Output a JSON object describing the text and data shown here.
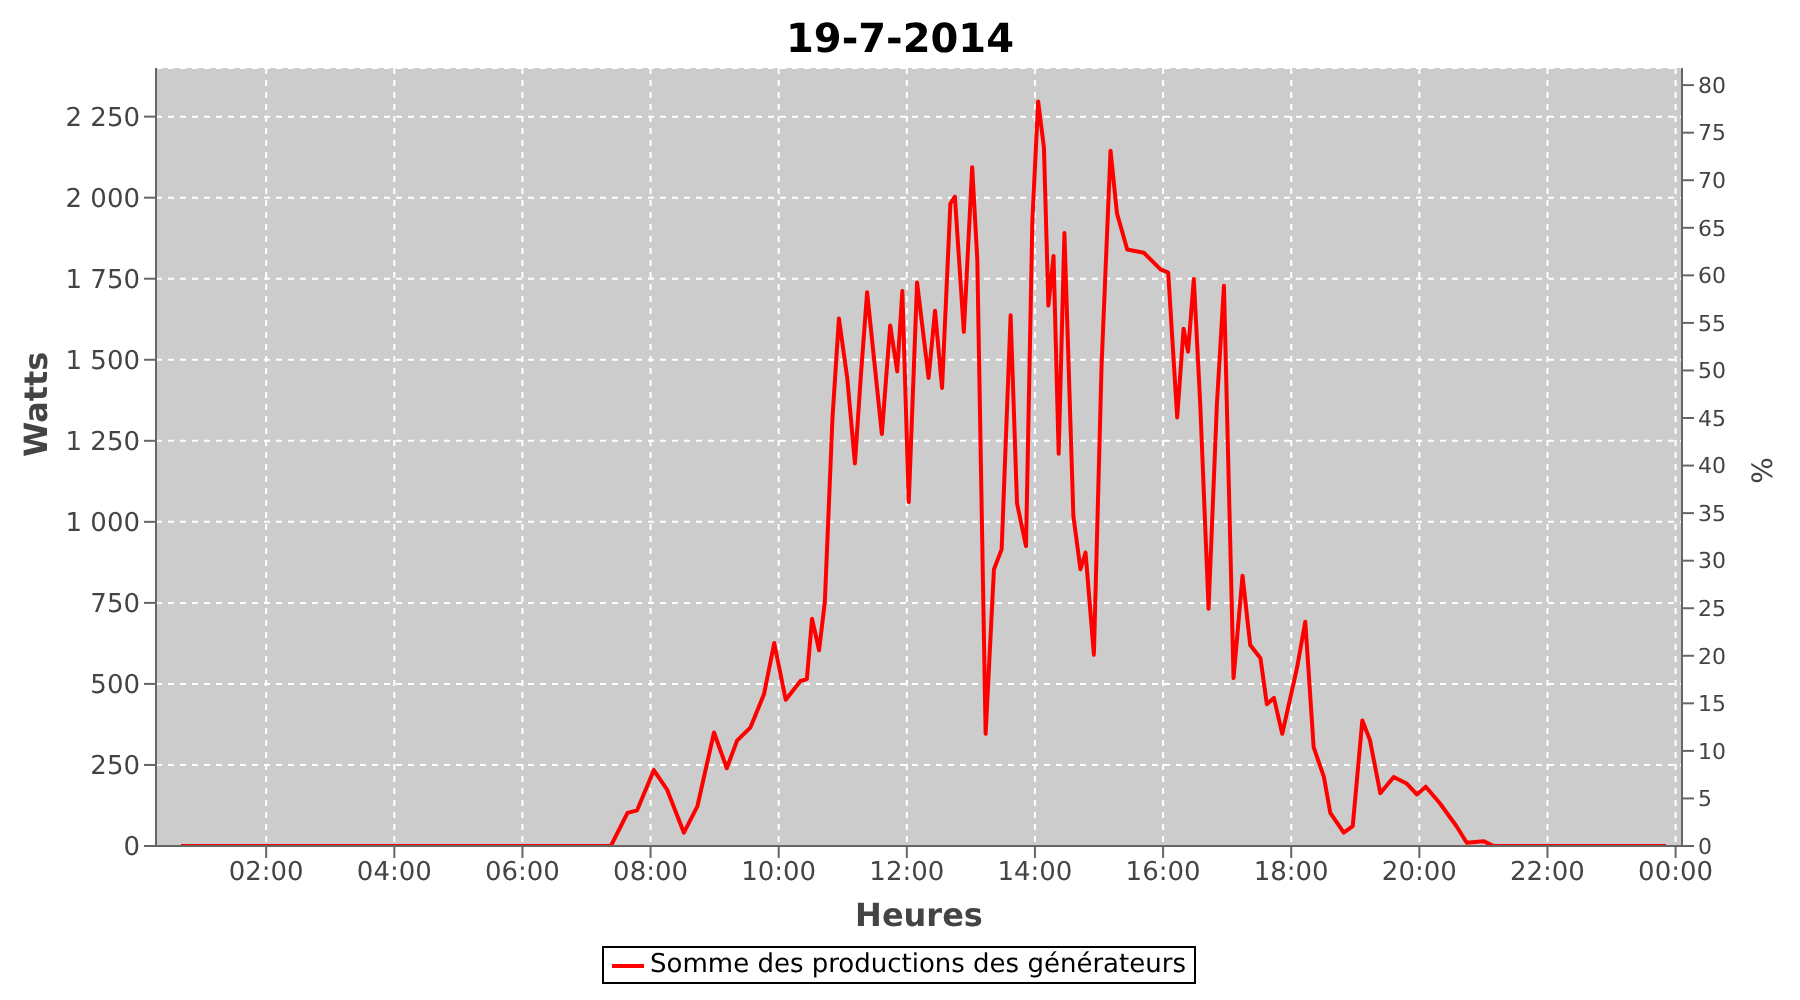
{
  "chart_data": {
    "type": "line",
    "title": "19-7-2014",
    "xlabel": "Heures",
    "ylabel": "Watts",
    "y2label": "%",
    "x": [
      0.67,
      7.3,
      7.38,
      7.64,
      7.79,
      8.05,
      8.26,
      8.52,
      8.73,
      8.99,
      9.19,
      9.35,
      9.56,
      9.77,
      9.93,
      10.11,
      10.34,
      10.44,
      10.52,
      10.63,
      10.72,
      10.84,
      10.94,
      11.07,
      11.19,
      11.28,
      11.38,
      11.61,
      11.74,
      11.85,
      11.93,
      12.03,
      12.16,
      12.34,
      12.44,
      12.55,
      12.68,
      12.75,
      12.89,
      13.02,
      13.1,
      13.23,
      13.36,
      13.48,
      13.62,
      13.72,
      13.86,
      13.96,
      14.05,
      14.14,
      14.21,
      14.29,
      14.37,
      14.46,
      14.6,
      14.71,
      14.79,
      14.92,
      15.04,
      15.18,
      15.28,
      15.44,
      15.7,
      15.96,
      16.08,
      16.22,
      16.32,
      16.39,
      16.48,
      16.58,
      16.71,
      16.84,
      16.95,
      17.1,
      17.24,
      17.36,
      17.52,
      17.62,
      17.73,
      17.86,
      18.09,
      18.22,
      18.35,
      18.51,
      18.61,
      18.82,
      18.96,
      19.11,
      19.23,
      19.39,
      19.6,
      19.8,
      19.96,
      20.1,
      20.32,
      20.58,
      20.74,
      21.0,
      21.16,
      23.85
    ],
    "series": [
      {
        "name": "Somme des productions des  générateurs",
        "color": "#ff0000",
        "values": [
          0,
          0,
          0,
          102,
          110,
          234,
          173,
          41,
          122,
          350,
          240,
          325,
          366,
          468,
          626,
          451,
          509,
          515,
          701,
          604,
          752,
          1322,
          1627,
          1444,
          1180,
          1444,
          1708,
          1271,
          1606,
          1464,
          1712,
          1061,
          1738,
          1444,
          1651,
          1413,
          1982,
          2003,
          1586,
          2094,
          1810,
          346,
          854,
          915,
          1637,
          1057,
          925,
          1931,
          2297,
          2155,
          1667,
          1820,
          1210,
          1891,
          1017,
          854,
          905,
          590,
          1484,
          2145,
          1952,
          1840,
          1830,
          1779,
          1769,
          1322,
          1596,
          1525,
          1749,
          1362,
          732,
          1362,
          1728,
          518,
          834,
          620,
          579,
          437,
          457,
          346,
          549,
          692,
          305,
          213,
          102,
          41,
          61,
          387,
          326,
          163,
          213,
          193,
          159,
          183,
          132,
          61,
          10,
          15,
          0,
          0
        ]
      }
    ],
    "xlim": [
      0.28,
      24.1
    ],
    "xticks": [
      {
        "value": 2,
        "label": "02:00"
      },
      {
        "value": 4,
        "label": "04:00"
      },
      {
        "value": 6,
        "label": "06:00"
      },
      {
        "value": 8,
        "label": "08:00"
      },
      {
        "value": 10,
        "label": "10:00"
      },
      {
        "value": 12,
        "label": "12:00"
      },
      {
        "value": 14,
        "label": "14:00"
      },
      {
        "value": 16,
        "label": "16:00"
      },
      {
        "value": 18,
        "label": "18:00"
      },
      {
        "value": 20,
        "label": "20:00"
      },
      {
        "value": 22,
        "label": "22:00"
      },
      {
        "value": 24,
        "label": "00:00"
      }
    ],
    "ylim": [
      0,
      2400
    ],
    "yticks": [
      0,
      250,
      500,
      750,
      {
        "value": 1000,
        "label": "1 000"
      },
      {
        "value": 1250,
        "label": "1 250"
      },
      {
        "value": 1500,
        "label": "1 500"
      },
      {
        "value": 1750,
        "label": "1 750"
      },
      {
        "value": 2000,
        "label": "2 000"
      },
      {
        "value": 2250,
        "label": "2 250"
      }
    ],
    "y2lim": [
      0,
      81.8
    ],
    "y2ticks": [
      0,
      5,
      10,
      15,
      20,
      25,
      30,
      35,
      40,
      45,
      50,
      55,
      60,
      65,
      70,
      75,
      80
    ],
    "grid": true,
    "legend": "bottom",
    "line_style": "solid"
  }
}
